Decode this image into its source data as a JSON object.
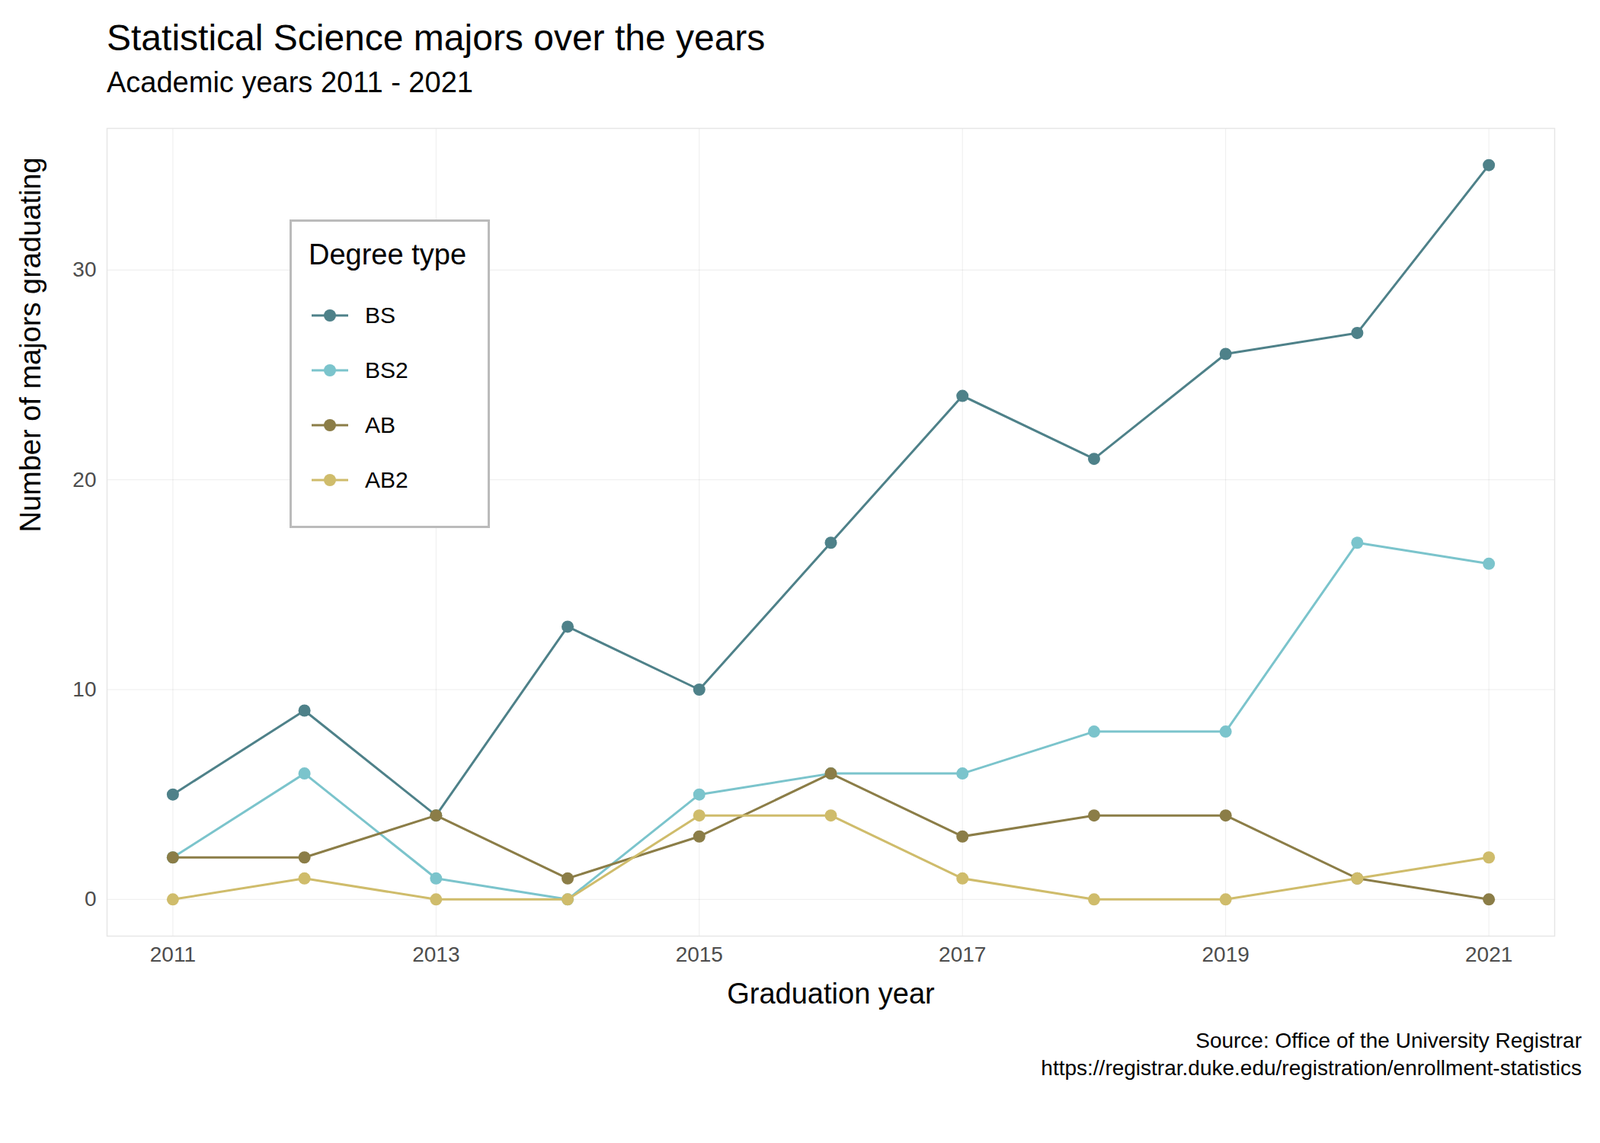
{
  "chart_data": {
    "type": "line",
    "title": "Statistical Science majors over the years",
    "subtitle": "Academic years 2011 - 2021",
    "x_label": "Graduation year",
    "y_label": "Number of majors graduating",
    "source": "Source: Office of the University Registrar",
    "source_url": "https://registrar.duke.edu/registration/enrollment-statistics",
    "legend_title": "Degree type",
    "legend": "top-left",
    "grid": true,
    "marker": "circle",
    "x": [
      2011,
      2012,
      2013,
      2014,
      2015,
      2016,
      2017,
      2018,
      2019,
      2020,
      2021
    ],
    "xlim": [
      2010.5,
      2021.5
    ],
    "xticks": [
      2011,
      2013,
      2015,
      2017,
      2019,
      2021
    ],
    "ylim": [
      -1.75,
      36.75
    ],
    "yticks": [
      0,
      10,
      20,
      30
    ],
    "series": [
      {
        "name": "BS",
        "color": "#4e8189",
        "values": [
          5,
          9,
          4,
          13,
          10,
          17,
          24,
          21,
          26,
          27,
          35
        ]
      },
      {
        "name": "BS2",
        "color": "#7bc4cc",
        "values": [
          2,
          6,
          1,
          0,
          5,
          6,
          6,
          8,
          8,
          17,
          16
        ]
      },
      {
        "name": "AB",
        "color": "#8b7d47",
        "values": [
          2,
          2,
          4,
          1,
          3,
          6,
          3,
          4,
          4,
          1,
          0
        ]
      },
      {
        "name": "AB2",
        "color": "#cfbc6b",
        "values": [
          0,
          1,
          0,
          0,
          4,
          4,
          1,
          0,
          0,
          1,
          2
        ]
      }
    ]
  }
}
